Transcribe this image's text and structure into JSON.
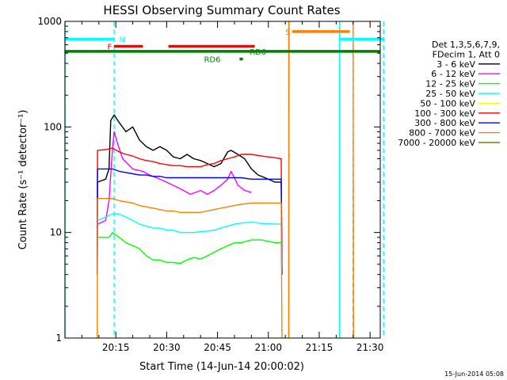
{
  "chart_data": {
    "type": "line",
    "title": "HESSI Observing Summary Count Rates",
    "xlabel": "Start Time (14-Jun-14 20:00:02)",
    "ylabel": "Count Rate (s⁻¹ detector⁻¹)",
    "yscale": "log",
    "xlim_min": [
      0,
      93
    ],
    "ylim": [
      1,
      1000
    ],
    "x_ticks": [
      {
        "label": "20:15",
        "min": 15
      },
      {
        "label": "20:30",
        "min": 30
      },
      {
        "label": "20:45",
        "min": 45
      },
      {
        "label": "21:00",
        "min": 60
      },
      {
        "label": "21:15",
        "min": 75
      },
      {
        "label": "21:30",
        "min": 90
      }
    ],
    "y_ticks": [
      {
        "label": "1",
        "value": 1
      },
      {
        "label": "10",
        "value": 10
      },
      {
        "label": "100",
        "value": 100
      },
      {
        "label": "1000",
        "value": 1000
      }
    ],
    "legend": {
      "placement": "right",
      "header": [
        "Det 1,3,5,6,7,9,",
        "FDecim 1, Att 0"
      ],
      "entries": [
        {
          "label": "3 - 6 keV",
          "color": "#000000"
        },
        {
          "label": "6 - 12 keV",
          "color": "#ff00ff"
        },
        {
          "label": "12 - 25 keV",
          "color": "#00ff00"
        },
        {
          "label": "25 - 50 keV",
          "color": "#00ffff"
        },
        {
          "label": "50 - 100 keV",
          "color": "#ffff00"
        },
        {
          "label": "100 - 300 keV",
          "color": "#ff0000"
        },
        {
          "label": "300 - 800 keV",
          "color": "#0000ff"
        },
        {
          "label": "800 - 7000 keV",
          "color": "#ff8000"
        },
        {
          "label": "7000 - 20000 keV",
          "color": "#808000"
        }
      ]
    },
    "series": [
      {
        "name": "3 - 6 keV",
        "color": "#000000",
        "segments": [
          [
            [
              9.5,
              4
            ],
            [
              9.6,
              30
            ],
            [
              12,
              32
            ],
            [
              13,
              40
            ],
            [
              13.5,
              115
            ],
            [
              14.5,
              130
            ],
            [
              16,
              110
            ],
            [
              18,
              90
            ],
            [
              20,
              100
            ],
            [
              22,
              75
            ],
            [
              24,
              65
            ],
            [
              26,
              60
            ],
            [
              28,
              65
            ],
            [
              30,
              60
            ],
            [
              32,
              52
            ],
            [
              34,
              50
            ],
            [
              36,
              55
            ],
            [
              38,
              50
            ],
            [
              40,
              48
            ],
            [
              42,
              45
            ],
            [
              44,
              42
            ],
            [
              46,
              45
            ],
            [
              48,
              58
            ],
            [
              49,
              60
            ],
            [
              51,
              55
            ],
            [
              53,
              50
            ],
            [
              55,
              40
            ],
            [
              57,
              35
            ],
            [
              59,
              33
            ],
            [
              62,
              30
            ],
            [
              63.8,
              30
            ],
            [
              64,
              4
            ]
          ]
        ]
      },
      {
        "name": "6 - 12 keV",
        "color": "#ff00ff",
        "segments": [
          [
            [
              9.5,
              4
            ],
            [
              9.6,
              12
            ],
            [
              12,
              13
            ],
            [
              13,
              20
            ],
            [
              14,
              60
            ],
            [
              14.5,
              90
            ],
            [
              15.5,
              70
            ],
            [
              17,
              50
            ],
            [
              20,
              40
            ],
            [
              23,
              38
            ],
            [
              25,
              35
            ],
            [
              27,
              33
            ],
            [
              30,
              30
            ],
            [
              33,
              27
            ],
            [
              35,
              25
            ],
            [
              37,
              23
            ],
            [
              40,
              25
            ],
            [
              42,
              23
            ],
            [
              44,
              25
            ],
            [
              46,
              28
            ],
            [
              48,
              32
            ],
            [
              49,
              38
            ],
            [
              50,
              33
            ],
            [
              51,
              28
            ],
            [
              53,
              25
            ],
            [
              55,
              24
            ]
          ]
        ]
      },
      {
        "name": "12 - 25 keV",
        "color": "#00ff00",
        "segments": [
          [
            [
              9.5,
              4
            ],
            [
              9.6,
              9
            ],
            [
              13,
              9
            ],
            [
              14,
              10
            ],
            [
              16,
              9
            ],
            [
              18,
              8
            ],
            [
              20,
              7.5
            ],
            [
              22,
              7
            ],
            [
              24,
              6
            ],
            [
              26,
              5.5
            ],
            [
              28,
              5.5
            ],
            [
              30,
              5.2
            ],
            [
              32,
              5.2
            ],
            [
              34,
              5.1
            ],
            [
              36,
              5.5
            ],
            [
              38,
              5.8
            ],
            [
              40,
              5.6
            ],
            [
              42,
              6
            ],
            [
              44,
              6.5
            ],
            [
              46,
              7
            ],
            [
              48,
              7.5
            ],
            [
              50,
              8
            ],
            [
              52,
              8
            ],
            [
              55,
              8.5
            ],
            [
              58,
              8.5
            ],
            [
              62,
              8
            ],
            [
              63.8,
              8
            ],
            [
              64,
              4
            ]
          ]
        ]
      },
      {
        "name": "25 - 50 keV",
        "color": "#00ffff",
        "segments": [
          [
            [
              9.5,
              4
            ],
            [
              9.6,
              13
            ],
            [
              12,
              14
            ],
            [
              14,
              15
            ],
            [
              16,
              15
            ],
            [
              18,
              14
            ],
            [
              20,
              13
            ],
            [
              22,
              12
            ],
            [
              24,
              11.5
            ],
            [
              26,
              11
            ],
            [
              28,
              11
            ],
            [
              30,
              10.5
            ],
            [
              32,
              10.5
            ],
            [
              34,
              10
            ],
            [
              36,
              10
            ],
            [
              38,
              10
            ],
            [
              40,
              10.2
            ],
            [
              42,
              10.3
            ],
            [
              44,
              10.5
            ],
            [
              46,
              11
            ],
            [
              48,
              11.5
            ],
            [
              50,
              12
            ],
            [
              52,
              12.3
            ],
            [
              55,
              12.5
            ],
            [
              58,
              12.2
            ],
            [
              62,
              12
            ],
            [
              63.8,
              12
            ],
            [
              64,
              4
            ]
          ]
        ]
      },
      {
        "name": "100 - 300 keV",
        "color": "#ff0000",
        "segments": [
          [
            [
              9.5,
              4
            ],
            [
              9.6,
              60
            ],
            [
              12,
              61
            ],
            [
              14,
              63
            ],
            [
              16,
              58
            ],
            [
              18,
              55
            ],
            [
              20,
              53
            ],
            [
              22,
              50
            ],
            [
              24,
              48
            ],
            [
              26,
              47
            ],
            [
              28,
              45
            ],
            [
              30,
              44
            ],
            [
              32,
              43
            ],
            [
              34,
              43
            ],
            [
              36,
              42
            ],
            [
              38,
              42
            ],
            [
              40,
              42
            ],
            [
              42,
              44
            ],
            [
              44,
              45
            ],
            [
              46,
              48
            ],
            [
              48,
              50
            ],
            [
              50,
              52
            ],
            [
              52,
              55
            ],
            [
              55,
              55
            ],
            [
              58,
              53
            ],
            [
              62,
              51
            ],
            [
              63.8,
              50
            ],
            [
              64,
              4
            ]
          ]
        ]
      },
      {
        "name": "300 - 800 keV",
        "color": "#0000ff",
        "segments": [
          [
            [
              9.5,
              4
            ],
            [
              9.6,
              40
            ],
            [
              12,
              40
            ],
            [
              14,
              40
            ],
            [
              16,
              38
            ],
            [
              18,
              37
            ],
            [
              20,
              36
            ],
            [
              22,
              35
            ],
            [
              24,
              35
            ],
            [
              26,
              34
            ],
            [
              28,
              34
            ],
            [
              30,
              33
            ],
            [
              32,
              33
            ],
            [
              34,
              33
            ],
            [
              36,
              33
            ],
            [
              38,
              33
            ],
            [
              40,
              33
            ],
            [
              42,
              33
            ],
            [
              44,
              33
            ],
            [
              46,
              33
            ],
            [
              48,
              33
            ],
            [
              50,
              33
            ],
            [
              52,
              33
            ],
            [
              55,
              32
            ],
            [
              58,
              32
            ],
            [
              62,
              32
            ],
            [
              63.8,
              32
            ],
            [
              64,
              4
            ]
          ]
        ]
      },
      {
        "name": "800 - 7000 keV",
        "color": "#ff8000",
        "segments": [
          [
            [
              9.5,
              1
            ],
            [
              9.6,
              21
            ],
            [
              12,
              21
            ],
            [
              14,
              21
            ],
            [
              16,
              20
            ],
            [
              18,
              19.5
            ],
            [
              20,
              19
            ],
            [
              22,
              18
            ],
            [
              24,
              17.5
            ],
            [
              26,
              17
            ],
            [
              28,
              16.5
            ],
            [
              30,
              16
            ],
            [
              32,
              16
            ],
            [
              34,
              15.5
            ],
            [
              36,
              15.5
            ],
            [
              38,
              15.5
            ],
            [
              40,
              15.5
            ],
            [
              42,
              16
            ],
            [
              44,
              16.5
            ],
            [
              46,
              17
            ],
            [
              48,
              17.5
            ],
            [
              50,
              18
            ],
            [
              52,
              18.5
            ],
            [
              55,
              19
            ],
            [
              58,
              19
            ],
            [
              62,
              19
            ],
            [
              63.8,
              19
            ],
            [
              64,
              1
            ]
          ],
          [
            [
              66,
              1
            ],
            [
              66.1,
              1000
            ]
          ],
          [
            [
              85,
              1000
            ],
            [
              85.1,
              1
            ]
          ]
        ]
      },
      {
        "name": "7000 - 20000 keV",
        "color": "#808000",
        "segments": []
      }
    ],
    "flags": [
      {
        "label": "N",
        "color": "#00ffff",
        "y": 680,
        "lines": [
          [
            0,
            14.5
          ],
          [
            81,
            94
          ]
        ],
        "label_at": 16
      },
      {
        "label": "F",
        "color": "#ff0000",
        "y": 580,
        "lines": [
          [
            14.5,
            23
          ],
          [
            30.5,
            56
          ]
        ],
        "label_at": 12.5
      },
      {
        "label": "S",
        "color": "#ff8000",
        "y": 800,
        "lines": [
          [
            67,
            84
          ]
        ],
        "label_at": 65
      },
      {
        "label": "RD0",
        "color": "#008000",
        "y": 520,
        "lines": [
          [
            0,
            93
          ]
        ],
        "label_at": 54.5
      },
      {
        "label": "RD6",
        "color": "#008000",
        "y": 440,
        "lines": [
          [
            51.5,
            52.5
          ]
        ],
        "label_at": 41
      }
    ],
    "vertical_lines": [
      {
        "color": "#00ffff",
        "style": "solid",
        "x": 0
      },
      {
        "color": "#00ffff",
        "style": "dashed",
        "x": 14.5
      },
      {
        "color": "#ff8000",
        "style": "solid",
        "x": 66
      },
      {
        "color": "#00ffff",
        "style": "solid",
        "x": 81
      },
      {
        "color": "#ff8000",
        "style": "dashed",
        "x": 85
      },
      {
        "color": "#00ffff",
        "style": "dashed",
        "x": 94
      }
    ]
  },
  "footer": {
    "timestamp": "15-Jun-2014 05:08"
  }
}
